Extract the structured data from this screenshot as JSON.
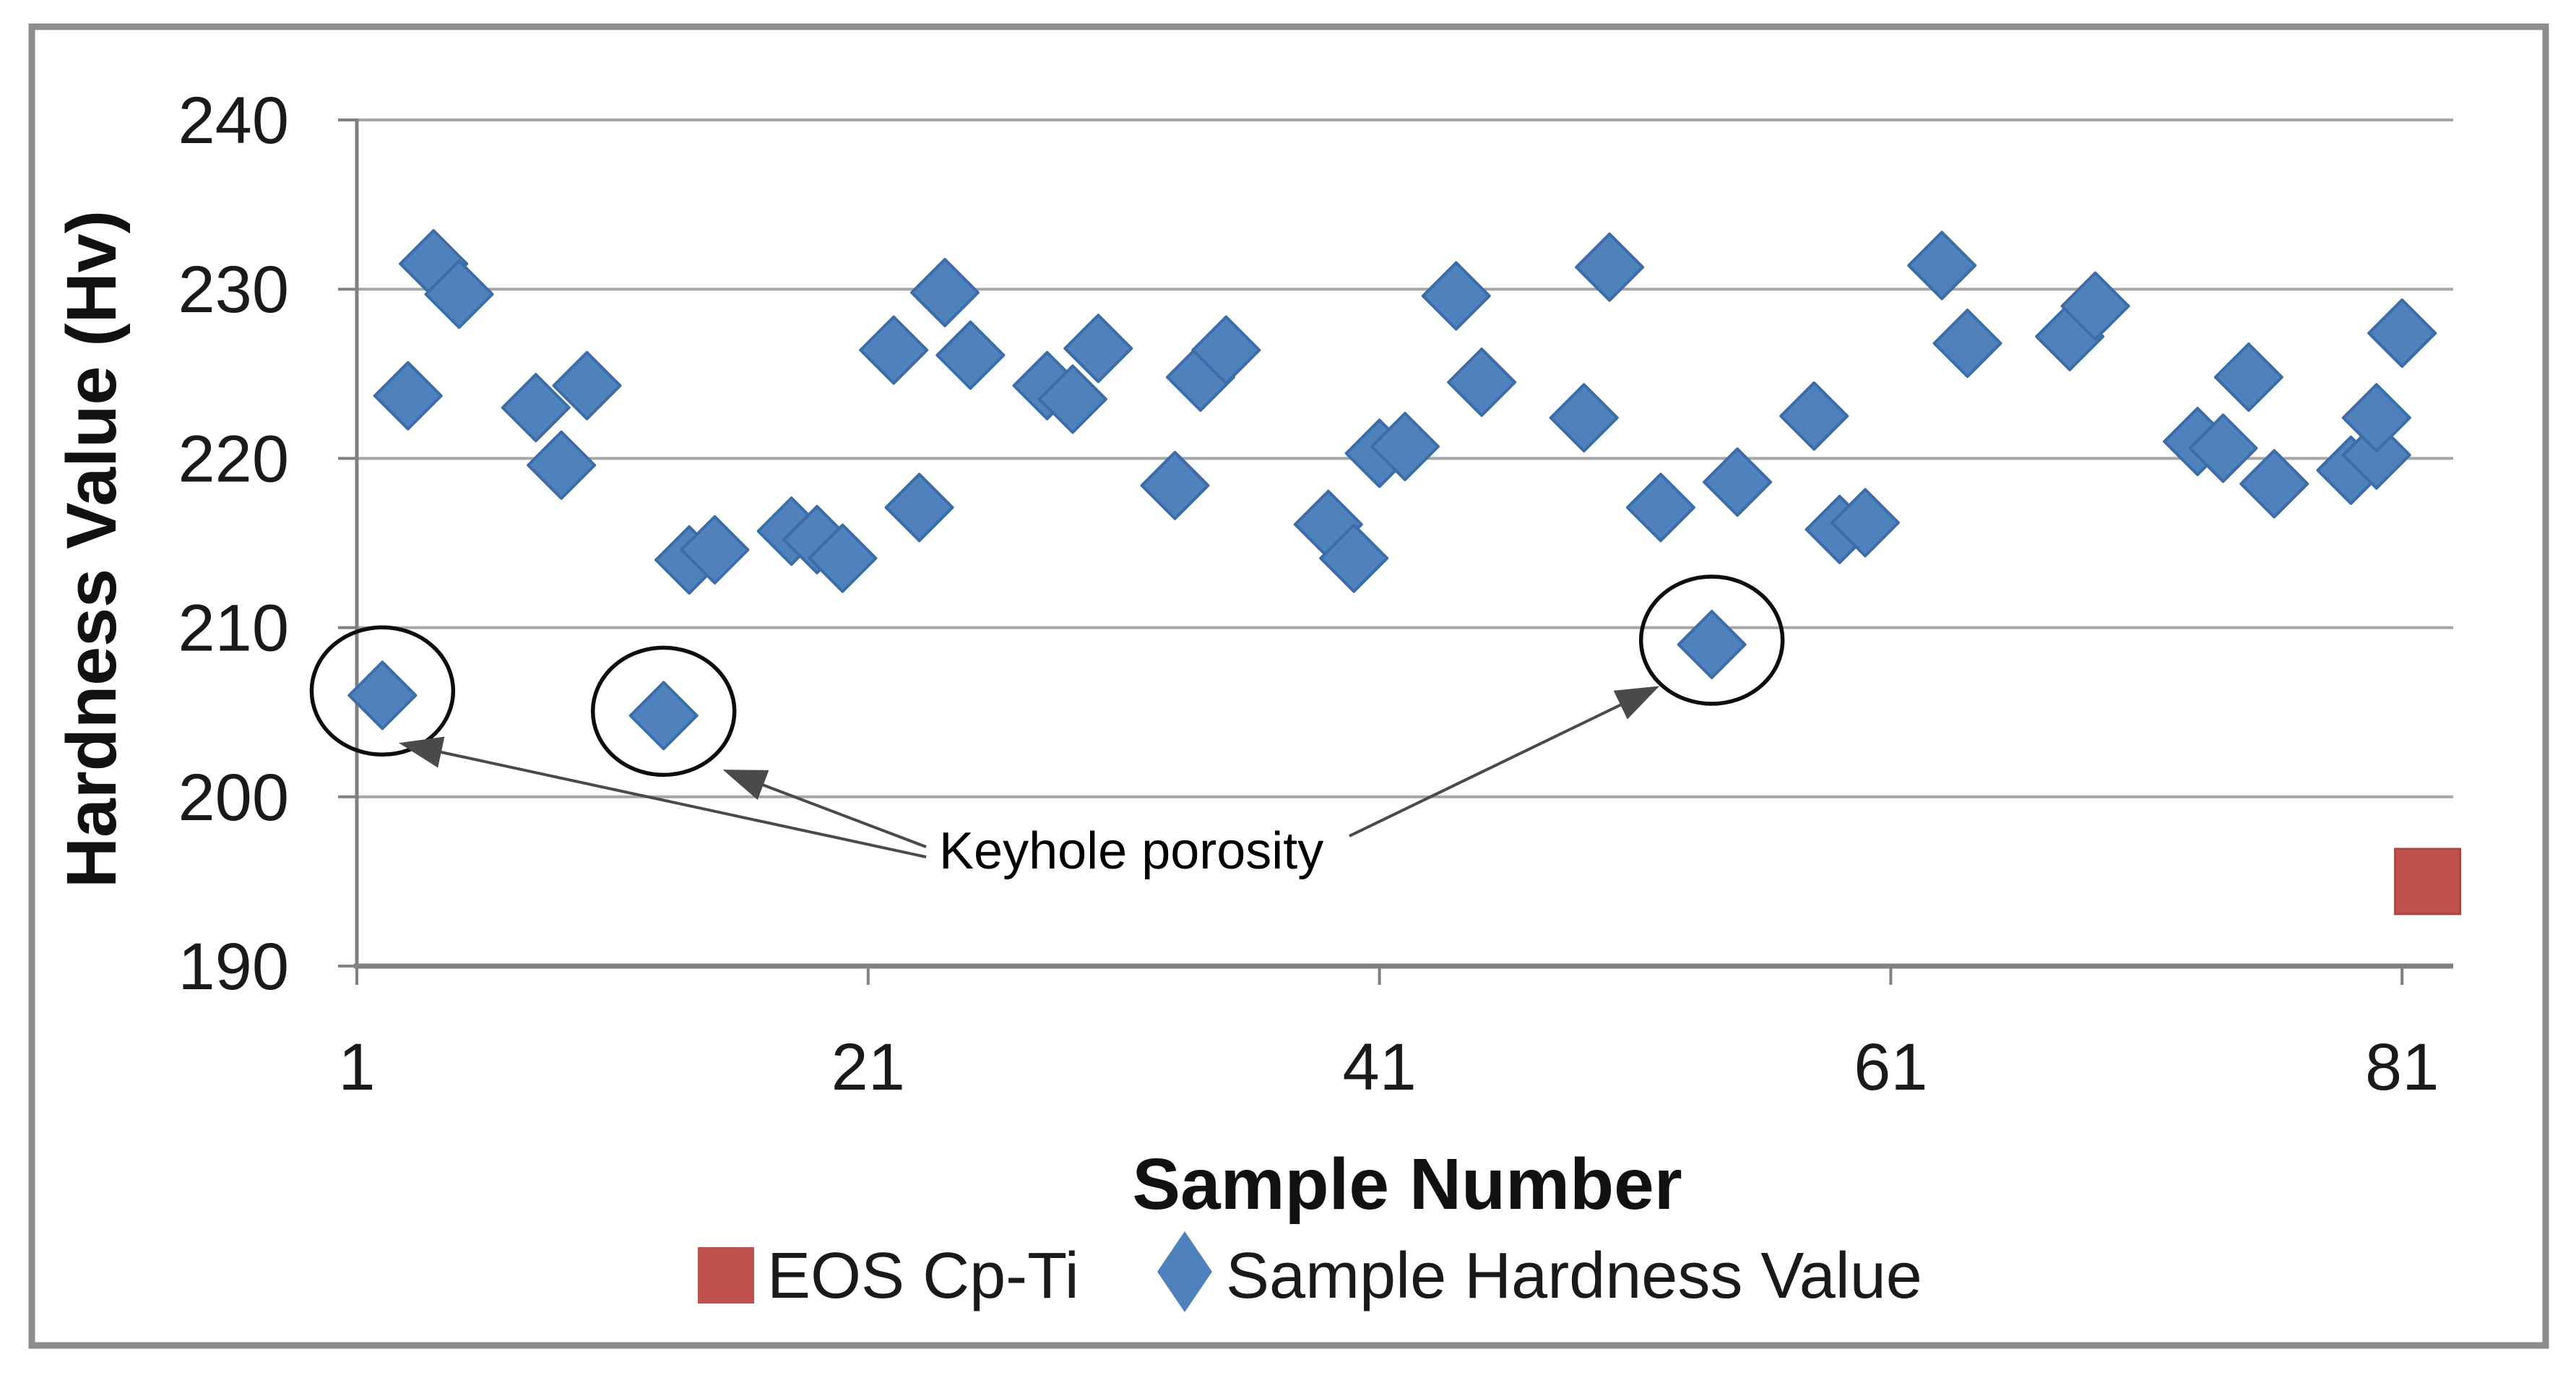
{
  "figure": {
    "border_color": "#8c8c8c",
    "background": "#ffffff",
    "legend": {
      "items": [
        {
          "label": "EOS Cp-Ti",
          "marker": "square",
          "color": "#c0504d"
        },
        {
          "label": "Sample Hardness Value",
          "marker": "diamond",
          "color": "#4f81bd"
        }
      ]
    }
  },
  "chart_data": {
    "type": "scatter",
    "title": "",
    "xlabel": "Sample Number",
    "ylabel": "Hardness Value (Hv)",
    "xlim": [
      1,
      83
    ],
    "ylim": [
      190,
      240
    ],
    "x_ticks": [
      1,
      21,
      41,
      61,
      81
    ],
    "y_ticks": [
      190,
      200,
      210,
      220,
      230,
      240
    ],
    "grid": "horizontal",
    "legend_position": "bottom",
    "gridline_color": "#a6a6a6",
    "axis_color": "#808080",
    "series": [
      {
        "name": "EOS Cp-Ti",
        "marker": "square",
        "color": "#c0504d",
        "stroke": "#aa4540",
        "points": [
          [
            82,
            195
          ]
        ]
      },
      {
        "name": "Sample Hardness Value",
        "marker": "diamond",
        "color": "#4f81bd",
        "stroke": "#3c6da8",
        "points": [
          [
            2,
            206.0
          ],
          [
            3,
            223.7
          ],
          [
            4,
            231.5
          ],
          [
            5,
            229.7
          ],
          [
            8,
            223.0
          ],
          [
            9,
            219.6
          ],
          [
            10,
            224.3
          ],
          [
            13,
            204.8
          ],
          [
            14,
            214.0
          ],
          [
            15,
            214.6
          ],
          [
            18,
            215.7
          ],
          [
            19,
            215.2
          ],
          [
            20,
            214.1
          ],
          [
            22,
            226.4
          ],
          [
            23,
            217.1
          ],
          [
            24,
            229.8
          ],
          [
            25,
            226.1
          ],
          [
            28,
            224.3
          ],
          [
            29,
            223.5
          ],
          [
            30,
            226.5
          ],
          [
            33,
            218.4
          ],
          [
            34,
            224.8
          ],
          [
            35,
            226.4
          ],
          [
            39,
            216.1
          ],
          [
            40,
            214.1
          ],
          [
            41,
            220.3
          ],
          [
            42,
            220.7
          ],
          [
            44,
            229.6
          ],
          [
            45,
            224.5
          ],
          [
            49,
            222.4
          ],
          [
            50,
            231.3
          ],
          [
            52,
            217.1
          ],
          [
            54,
            209.0
          ],
          [
            55,
            218.6
          ],
          [
            58,
            222.5
          ],
          [
            59,
            215.8
          ],
          [
            60,
            216.2
          ],
          [
            63,
            231.4
          ],
          [
            64,
            226.8
          ],
          [
            68,
            227.2
          ],
          [
            69,
            229.0
          ],
          [
            73,
            221.0
          ],
          [
            74,
            220.6
          ],
          [
            75,
            224.8
          ],
          [
            76,
            218.5
          ],
          [
            79,
            219.3
          ],
          [
            80,
            220.2
          ],
          [
            80,
            222.4
          ],
          [
            81,
            227.4
          ]
        ]
      }
    ],
    "annotation": {
      "text": "Keyhole porosity",
      "circled_points": [
        [
          2,
          206.0
        ],
        [
          13,
          204.8
        ],
        [
          54,
          209.0
        ]
      ],
      "circle_color": "#0d0d0d",
      "arrow_color": "#4a4a4a"
    }
  }
}
